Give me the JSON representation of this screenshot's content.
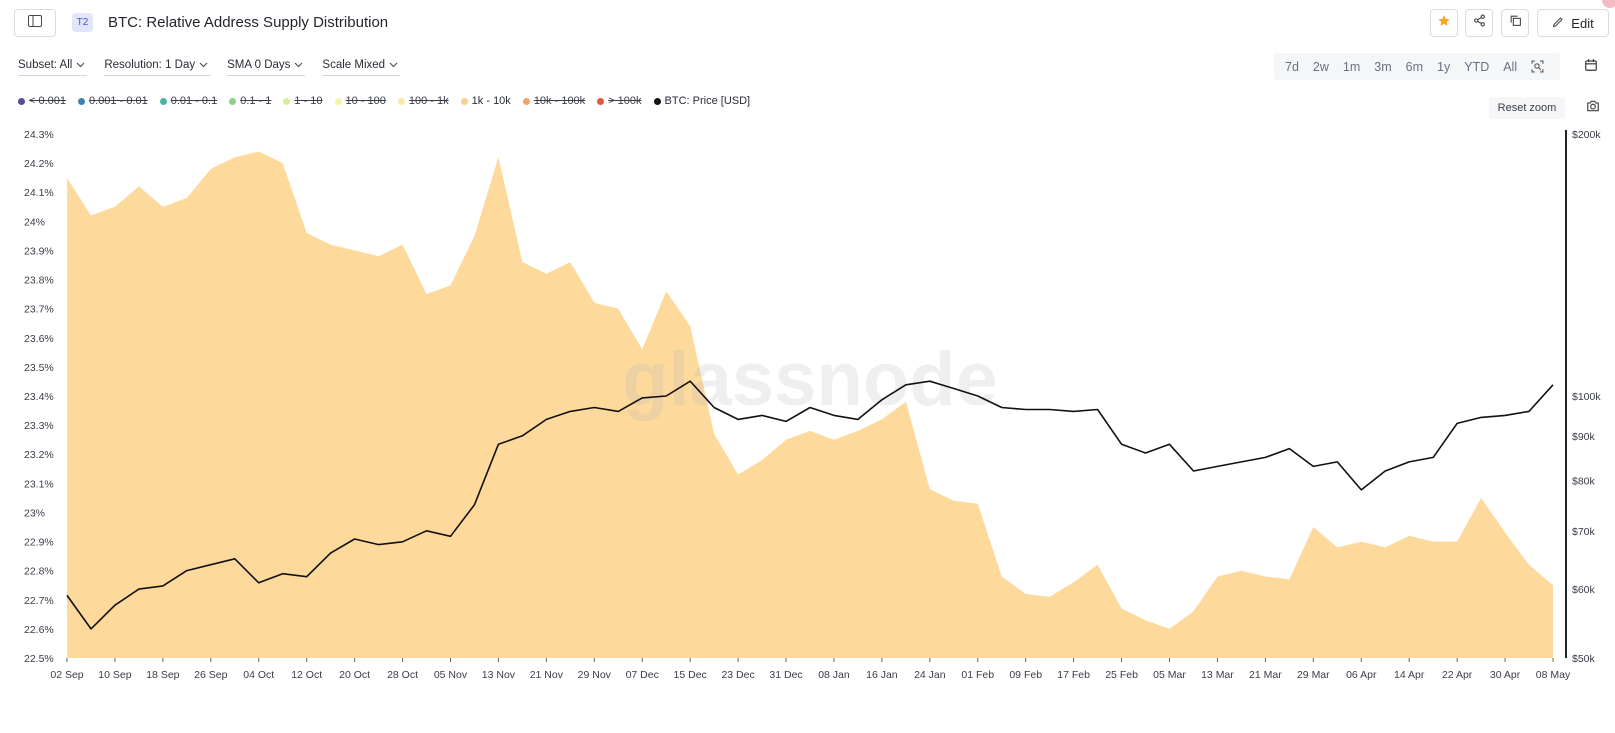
{
  "header": {
    "tier_badge": "T2",
    "title": "BTC: Relative Address Supply Distribution",
    "edit_label": "Edit"
  },
  "controls": {
    "subset": "Subset: All",
    "resolution": "Resolution: 1 Day",
    "sma": "SMA 0 Days",
    "scale": "Scale Mixed"
  },
  "time_ranges": [
    "7d",
    "2w",
    "1m",
    "3m",
    "6m",
    "1y",
    "YTD",
    "All"
  ],
  "reset_zoom_label": "Reset zoom",
  "watermark": "glassnode",
  "legend": [
    {
      "label": "< 0.001",
      "color": "#5b4a9a",
      "active": false
    },
    {
      "label": "0.001 - 0.01",
      "color": "#3b82b8",
      "active": false
    },
    {
      "label": "0.01 - 0.1",
      "color": "#46b4a4",
      "active": false
    },
    {
      "label": "0.1 - 1",
      "color": "#8fcf8a",
      "active": false
    },
    {
      "label": "1 - 10",
      "color": "#d6ee9a",
      "active": false
    },
    {
      "label": "10 - 100",
      "color": "#f6f4a6",
      "active": false
    },
    {
      "label": "100 - 1k",
      "color": "#fce9a8",
      "active": false
    },
    {
      "label": "1k - 10k",
      "color": "#fbd08e",
      "active": true
    },
    {
      "label": "10k - 100k",
      "color": "#f3a36a",
      "active": false
    },
    {
      "label": "> 100k",
      "color": "#e4573e",
      "active": false
    },
    {
      "label": "BTC: Price [USD]",
      "color": "#111111",
      "active": true
    }
  ],
  "colors": {
    "area_fill": "#fdd99b",
    "price_line": "#111111",
    "accent_star": "#f5a623"
  },
  "chart_data": {
    "type": "area",
    "x_tick_labels": [
      "02 Sep",
      "10 Sep",
      "18 Sep",
      "26 Sep",
      "04 Oct",
      "12 Oct",
      "20 Oct",
      "28 Oct",
      "05 Nov",
      "13 Nov",
      "21 Nov",
      "29 Nov",
      "07 Dec",
      "15 Dec",
      "23 Dec",
      "31 Dec",
      "08 Jan",
      "16 Jan",
      "24 Jan",
      "01 Feb",
      "09 Feb",
      "17 Feb",
      "25 Feb",
      "05 Mar",
      "13 Mar",
      "21 Mar",
      "29 Mar",
      "06 Apr",
      "14 Apr",
      "22 Apr",
      "30 Apr",
      "08 May"
    ],
    "y_left_ticks": [
      "24.3%",
      "24.2%",
      "24.1%",
      "24%",
      "23.9%",
      "23.8%",
      "23.7%",
      "23.6%",
      "23.5%",
      "23.4%",
      "23.3%",
      "23.2%",
      "23.1%",
      "23%",
      "22.9%",
      "22.8%",
      "22.7%",
      "22.6%",
      "22.5%"
    ],
    "y_left_range": [
      22.5,
      24.3
    ],
    "y_right_ticks": [
      "$200k",
      "$100k",
      "$90k",
      "$80k",
      "$70k",
      "$60k",
      "$50k"
    ],
    "y_right_range": [
      50000,
      200000
    ],
    "y_right_scale": "log",
    "x_start": "02 Sep",
    "x_end": "08 May",
    "series": [
      {
        "name": "1k - 10k",
        "type": "area",
        "axis": "left",
        "unit": "%",
        "points": [
          [
            "02 Sep",
            24.15
          ],
          [
            "06 Sep",
            24.02
          ],
          [
            "10 Sep",
            24.05
          ],
          [
            "14 Sep",
            24.12
          ],
          [
            "18 Sep",
            24.05
          ],
          [
            "22 Sep",
            24.08
          ],
          [
            "26 Sep",
            24.18
          ],
          [
            "30 Sep",
            24.22
          ],
          [
            "04 Oct",
            24.24
          ],
          [
            "08 Oct",
            24.2
          ],
          [
            "12 Oct",
            23.96
          ],
          [
            "16 Oct",
            23.92
          ],
          [
            "20 Oct",
            23.9
          ],
          [
            "24 Oct",
            23.88
          ],
          [
            "28 Oct",
            23.92
          ],
          [
            "01 Nov",
            23.75
          ],
          [
            "05 Nov",
            23.78
          ],
          [
            "09 Nov",
            23.95
          ],
          [
            "13 Nov",
            24.22
          ],
          [
            "17 Nov",
            23.86
          ],
          [
            "21 Nov",
            23.82
          ],
          [
            "25 Nov",
            23.86
          ],
          [
            "29 Nov",
            23.72
          ],
          [
            "03 Dec",
            23.7
          ],
          [
            "07 Dec",
            23.56
          ],
          [
            "11 Dec",
            23.76
          ],
          [
            "15 Dec",
            23.64
          ],
          [
            "19 Dec",
            23.27
          ],
          [
            "23 Dec",
            23.13
          ],
          [
            "27 Dec",
            23.18
          ],
          [
            "31 Dec",
            23.25
          ],
          [
            "04 Jan",
            23.28
          ],
          [
            "08 Jan",
            23.25
          ],
          [
            "12 Jan",
            23.28
          ],
          [
            "16 Jan",
            23.32
          ],
          [
            "20 Jan",
            23.38
          ],
          [
            "24 Jan",
            23.08
          ],
          [
            "28 Jan",
            23.04
          ],
          [
            "01 Feb",
            23.03
          ],
          [
            "05 Feb",
            22.78
          ],
          [
            "09 Feb",
            22.72
          ],
          [
            "13 Feb",
            22.71
          ],
          [
            "17 Feb",
            22.76
          ],
          [
            "21 Feb",
            22.82
          ],
          [
            "25 Feb",
            22.67
          ],
          [
            "01 Mar",
            22.63
          ],
          [
            "05 Mar",
            22.6
          ],
          [
            "09 Mar",
            22.66
          ],
          [
            "13 Mar",
            22.78
          ],
          [
            "17 Mar",
            22.8
          ],
          [
            "21 Mar",
            22.78
          ],
          [
            "25 Mar",
            22.77
          ],
          [
            "29 Mar",
            22.95
          ],
          [
            "02 Apr",
            22.88
          ],
          [
            "06 Apr",
            22.9
          ],
          [
            "10 Apr",
            22.88
          ],
          [
            "14 Apr",
            22.92
          ],
          [
            "18 Apr",
            22.9
          ],
          [
            "22 Apr",
            22.9
          ],
          [
            "26 Apr",
            23.05
          ],
          [
            "30 Apr",
            22.93
          ],
          [
            "04 May",
            22.82
          ],
          [
            "08 May",
            22.75
          ]
        ]
      },
      {
        "name": "BTC: Price [USD]",
        "type": "line",
        "axis": "right",
        "unit": "USD",
        "points": [
          [
            "02 Sep",
            59000
          ],
          [
            "06 Sep",
            54000
          ],
          [
            "10 Sep",
            57500
          ],
          [
            "14 Sep",
            60000
          ],
          [
            "18 Sep",
            60500
          ],
          [
            "22 Sep",
            63000
          ],
          [
            "26 Sep",
            64000
          ],
          [
            "30 Sep",
            65000
          ],
          [
            "04 Oct",
            61000
          ],
          [
            "08 Oct",
            62500
          ],
          [
            "12 Oct",
            62000
          ],
          [
            "16 Oct",
            66000
          ],
          [
            "20 Oct",
            68500
          ],
          [
            "24 Oct",
            67500
          ],
          [
            "28 Oct",
            68000
          ],
          [
            "01 Nov",
            70000
          ],
          [
            "05 Nov",
            69000
          ],
          [
            "09 Nov",
            75000
          ],
          [
            "13 Nov",
            88000
          ],
          [
            "17 Nov",
            90000
          ],
          [
            "21 Nov",
            94000
          ],
          [
            "25 Nov",
            96000
          ],
          [
            "29 Nov",
            97000
          ],
          [
            "03 Dec",
            96000
          ],
          [
            "07 Dec",
            99500
          ],
          [
            "11 Dec",
            100000
          ],
          [
            "15 Dec",
            104000
          ],
          [
            "19 Dec",
            97000
          ],
          [
            "23 Dec",
            94000
          ],
          [
            "27 Dec",
            95000
          ],
          [
            "31 Dec",
            93500
          ],
          [
            "04 Jan",
            97000
          ],
          [
            "08 Jan",
            95000
          ],
          [
            "12 Jan",
            94000
          ],
          [
            "16 Jan",
            99000
          ],
          [
            "20 Jan",
            103000
          ],
          [
            "24 Jan",
            104000
          ],
          [
            "28 Jan",
            102000
          ],
          [
            "01 Feb",
            100000
          ],
          [
            "05 Feb",
            97000
          ],
          [
            "09 Feb",
            96500
          ],
          [
            "13 Feb",
            96500
          ],
          [
            "17 Feb",
            96000
          ],
          [
            "21 Feb",
            96500
          ],
          [
            "25 Feb",
            88000
          ],
          [
            "01 Mar",
            86000
          ],
          [
            "05 Mar",
            88000
          ],
          [
            "09 Mar",
            82000
          ],
          [
            "13 Mar",
            83000
          ],
          [
            "17 Mar",
            84000
          ],
          [
            "21 Mar",
            85000
          ],
          [
            "25 Mar",
            87000
          ],
          [
            "29 Mar",
            83000
          ],
          [
            "02 Apr",
            84000
          ],
          [
            "06 Apr",
            78000
          ],
          [
            "10 Apr",
            82000
          ],
          [
            "14 Apr",
            84000
          ],
          [
            "18 Apr",
            85000
          ],
          [
            "22 Apr",
            93000
          ],
          [
            "26 Apr",
            94500
          ],
          [
            "30 Apr",
            95000
          ],
          [
            "04 May",
            96000
          ],
          [
            "08 May",
            103000
          ]
        ]
      }
    ]
  }
}
